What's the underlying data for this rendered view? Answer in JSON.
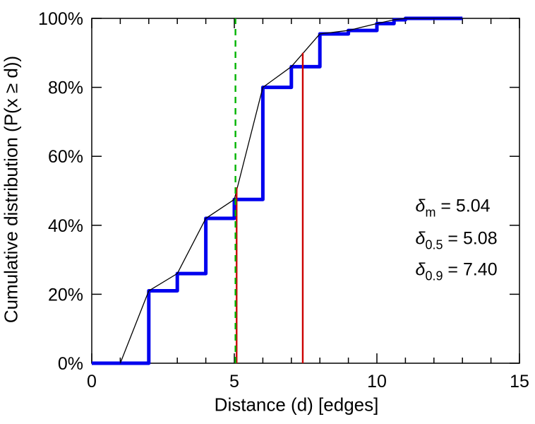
{
  "chart_data": {
    "type": "line",
    "title": "",
    "xlabel": "Distance (d) [edges]",
    "ylabel": "Cumulative distribution (P(x ≥ d))",
    "xlim": [
      0,
      15
    ],
    "ylim": [
      0,
      100
    ],
    "x_major_ticks": [
      0,
      5,
      10,
      15
    ],
    "x_minor_tick_step": 1,
    "y_ticks": [
      0,
      20,
      40,
      60,
      80,
      100
    ],
    "y_tick_labels": [
      "0%",
      "20%",
      "40%",
      "60%",
      "80%",
      "100%"
    ],
    "grid": false,
    "legend_position": "none",
    "axis_color": "#000000",
    "series": [
      {
        "name": "empirical-cdf-step",
        "style": "step",
        "color": "#0000ee",
        "line_width": 5,
        "points": [
          [
            0,
            0
          ],
          [
            2,
            21
          ],
          [
            3,
            26
          ],
          [
            4,
            42
          ],
          [
            5,
            47.5
          ],
          [
            6,
            80
          ],
          [
            7,
            86
          ],
          [
            8,
            95.5
          ],
          [
            9,
            96.5
          ],
          [
            10,
            98.5
          ],
          [
            10.6,
            99.6
          ],
          [
            11,
            100
          ],
          [
            13,
            100
          ]
        ]
      },
      {
        "name": "linear-interpolation",
        "style": "line",
        "color": "#000000",
        "line_width": 1.3,
        "points": [
          [
            1,
            0
          ],
          [
            2,
            21
          ],
          [
            3,
            26
          ],
          [
            4,
            42
          ],
          [
            5,
            47.5
          ],
          [
            6,
            80
          ],
          [
            7,
            86
          ],
          [
            8,
            95.5
          ],
          [
            9,
            96.5
          ],
          [
            10,
            98.5
          ],
          [
            10.6,
            99.6
          ],
          [
            11,
            100
          ],
          [
            13,
            100
          ]
        ]
      }
    ],
    "vertical_lines": [
      {
        "name": "median-line",
        "x": 5.08,
        "y_from": 0,
        "y_to": 51,
        "color": "#cc0000",
        "dash": "",
        "width": 2.4
      },
      {
        "name": "p90-line",
        "x": 7.4,
        "y_from": 0,
        "y_to": 90,
        "color": "#cc0000",
        "dash": "",
        "width": 2.4
      },
      {
        "name": "mean-line",
        "x": 5.04,
        "y_from": 0,
        "y_to": 100,
        "color": "#00b400",
        "dash": "9,7",
        "width": 2.4
      }
    ],
    "annotations": [
      {
        "name": "annotation-delta-m",
        "symbol": "δ",
        "subscript": "m",
        "text": " = 5.04",
        "x": 11.35,
        "y": 44
      },
      {
        "name": "annotation-delta-05",
        "symbol": "δ",
        "subscript": "0.5",
        "text": " = 5.08",
        "x": 11.35,
        "y": 34.5
      },
      {
        "name": "annotation-delta-09",
        "symbol": "δ",
        "subscript": "0.9",
        "text": " = 7.40",
        "x": 11.35,
        "y": 25.5
      }
    ]
  }
}
